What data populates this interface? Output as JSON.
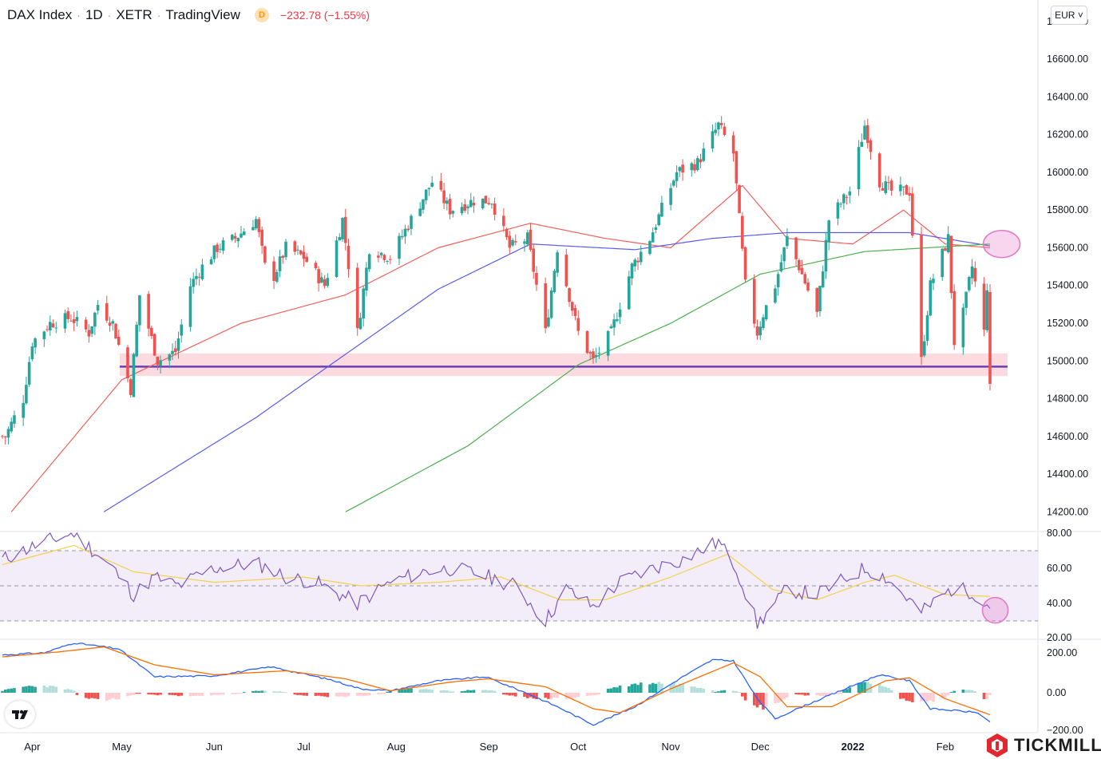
{
  "header": {
    "symbol": "DAX Index",
    "interval": "1D",
    "exchange": "XETR",
    "source": "TradingView",
    "badge": "D",
    "change": "−232.78 (−1.55%)"
  },
  "currency": "EUR",
  "brand": "TICKMILL",
  "colors": {
    "up": "#26a69a",
    "down": "#ef5350",
    "ma50": "#f4605a",
    "ma100": "#5b5bf0",
    "ma200": "#4caf50",
    "support_line": "#6a3fb5",
    "support_zone": "#f8bcc6",
    "rsi": "#7e57c2",
    "rsi_ma": "#f2d14b",
    "macd": "#2962ff",
    "signal": "#ff6d00",
    "hist_up_strong": "#26a69a",
    "hist_up_weak": "#b2dfdb",
    "hist_down_strong": "#ef5350",
    "hist_down_weak": "#ffcdd2",
    "highlight": "#e576c6"
  },
  "chart_data": [
    {
      "type": "candlestick",
      "panel": "price",
      "ylim": [
        14100,
        16850
      ],
      "y_ticks": [
        "16800.00",
        "16600.00",
        "16400.00",
        "16200.00",
        "16000.00",
        "15800.00",
        "15600.00",
        "15400.00",
        "15200.00",
        "15000.00",
        "14800.00",
        "14600.00",
        "14400.00",
        "14200.00"
      ],
      "x_ticks": [
        "Apr",
        "May",
        "Jun",
        "Jul",
        "Aug",
        "Sep",
        "Oct",
        "Nov",
        "Dec",
        "2022",
        "Feb"
      ],
      "x_range": [
        "2021-03-22",
        "2022-02-16"
      ],
      "anchors": [
        {
          "date": "2021-03-23",
          "close": 14600
        },
        {
          "date": "2021-03-29",
          "close": 14800
        },
        {
          "date": "2021-04-01",
          "close": 15100
        },
        {
          "date": "2021-04-07",
          "close": 15200
        },
        {
          "date": "2021-04-14",
          "close": 15230
        },
        {
          "date": "2021-04-20",
          "close": 15150
        },
        {
          "date": "2021-04-23",
          "close": 15300
        },
        {
          "date": "2021-04-28",
          "close": 15200
        },
        {
          "date": "2021-05-04",
          "close": 14850
        },
        {
          "date": "2021-05-07",
          "close": 15350
        },
        {
          "date": "2021-05-13",
          "close": 15000
        },
        {
          "date": "2021-05-19",
          "close": 15050
        },
        {
          "date": "2021-05-24",
          "close": 15400
        },
        {
          "date": "2021-05-28",
          "close": 15500
        },
        {
          "date": "2021-06-02",
          "close": 15600
        },
        {
          "date": "2021-06-08",
          "close": 15650
        },
        {
          "date": "2021-06-15",
          "close": 15750
        },
        {
          "date": "2021-06-18",
          "close": 15500
        },
        {
          "date": "2021-06-21",
          "close": 15450
        },
        {
          "date": "2021-06-25",
          "close": 15600
        },
        {
          "date": "2021-07-01",
          "close": 15550
        },
        {
          "date": "2021-07-08",
          "close": 15400
        },
        {
          "date": "2021-07-14",
          "close": 15750
        },
        {
          "date": "2021-07-19",
          "close": 15150
        },
        {
          "date": "2021-07-23",
          "close": 15600
        },
        {
          "date": "2021-07-30",
          "close": 15550
        },
        {
          "date": "2021-08-06",
          "close": 15750
        },
        {
          "date": "2021-08-13",
          "close": 15950
        },
        {
          "date": "2021-08-19",
          "close": 15800
        },
        {
          "date": "2021-08-27",
          "close": 15850
        },
        {
          "date": "2021-09-02",
          "close": 15850
        },
        {
          "date": "2021-09-08",
          "close": 15600
        },
        {
          "date": "2021-09-14",
          "close": 15650
        },
        {
          "date": "2021-09-20",
          "close": 15150
        },
        {
          "date": "2021-09-24",
          "close": 15600
        },
        {
          "date": "2021-10-01",
          "close": 15150
        },
        {
          "date": "2021-10-06",
          "close": 15000
        },
        {
          "date": "2021-10-12",
          "close": 15150
        },
        {
          "date": "2021-10-19",
          "close": 15500
        },
        {
          "date": "2021-10-25",
          "close": 15650
        },
        {
          "date": "2021-11-03",
          "close": 16000
        },
        {
          "date": "2021-11-10",
          "close": 16050
        },
        {
          "date": "2021-11-17",
          "close": 16250
        },
        {
          "date": "2021-11-22",
          "close": 16100
        },
        {
          "date": "2021-11-26",
          "close": 15400
        },
        {
          "date": "2021-11-30",
          "close": 15150
        },
        {
          "date": "2021-12-02",
          "close": 15250
        },
        {
          "date": "2021-12-06",
          "close": 15400
        },
        {
          "date": "2021-12-10",
          "close": 15650
        },
        {
          "date": "2021-12-14",
          "close": 15500
        },
        {
          "date": "2021-12-20",
          "close": 15250
        },
        {
          "date": "2021-12-24",
          "close": 15750
        },
        {
          "date": "2021-12-31",
          "close": 15900
        },
        {
          "date": "2022-01-05",
          "close": 16250
        },
        {
          "date": "2022-01-10",
          "close": 15950
        },
        {
          "date": "2022-01-14",
          "close": 15900
        },
        {
          "date": "2022-01-20",
          "close": 15900
        },
        {
          "date": "2022-01-24",
          "close": 15000
        },
        {
          "date": "2022-01-27",
          "close": 15400
        },
        {
          "date": "2022-02-02",
          "close": 15650
        },
        {
          "date": "2022-02-04",
          "close": 15100
        },
        {
          "date": "2022-02-07",
          "close": 15250
        },
        {
          "date": "2022-02-10",
          "close": 15500
        },
        {
          "date": "2022-02-14",
          "close": 15150
        },
        {
          "date": "2022-02-15",
          "close": 15400
        },
        {
          "date": "2022-02-16",
          "close": 14850
        }
      ],
      "moving_averages": [
        {
          "name": "MA50",
          "color": "#f4605a",
          "points": [
            [
              "2021-03-25",
              14200
            ],
            [
              "2021-05-01",
              14900
            ],
            [
              "2021-06-10",
              15200
            ],
            [
              "2021-07-15",
              15350
            ],
            [
              "2021-08-15",
              15600
            ],
            [
              "2021-09-15",
              15730
            ],
            [
              "2021-10-10",
              15650
            ],
            [
              "2021-11-01",
              15600
            ],
            [
              "2021-11-25",
              15930
            ],
            [
              "2021-12-10",
              15650
            ],
            [
              "2022-01-01",
              15620
            ],
            [
              "2022-01-18",
              15800
            ],
            [
              "2022-02-01",
              15620
            ],
            [
              "2022-02-16",
              15600
            ]
          ]
        },
        {
          "name": "MA100",
          "color": "#5b5bf0",
          "points": [
            [
              "2021-04-25",
              14200
            ],
            [
              "2021-06-15",
              14700
            ],
            [
              "2021-07-10",
              14980
            ],
            [
              "2021-08-15",
              15380
            ],
            [
              "2021-09-15",
              15620
            ],
            [
              "2021-10-20",
              15590
            ],
            [
              "2021-11-15",
              15650
            ],
            [
              "2021-12-10",
              15680
            ],
            [
              "2022-01-20",
              15680
            ],
            [
              "2022-02-16",
              15610
            ]
          ]
        },
        {
          "name": "MA200",
          "color": "#4caf50",
          "points": [
            [
              "2021-07-15",
              14200
            ],
            [
              "2021-08-25",
              14550
            ],
            [
              "2021-10-01",
              14980
            ],
            [
              "2021-11-01",
              15200
            ],
            [
              "2021-12-01",
              15460
            ],
            [
              "2022-01-05",
              15580
            ],
            [
              "2022-02-16",
              15620
            ]
          ]
        }
      ],
      "support": {
        "level": 14970,
        "zone": [
          14920,
          15040
        ],
        "from": "2021-05-03"
      },
      "highlight": {
        "date": "2022-02-14",
        "value": 15620
      }
    },
    {
      "type": "line",
      "panel": "RSI",
      "ylim": [
        20,
        80
      ],
      "y_ticks": [
        "80.00",
        "60.00",
        "40.00",
        "20.00"
      ],
      "band": [
        30,
        70
      ],
      "midline": 50,
      "series": [
        {
          "anchors": [
            [
              "2021-03-22",
              65
            ],
            [
              "2021-04-05",
              75
            ],
            [
              "2021-04-15",
              80
            ],
            [
              "2021-04-28",
              60
            ],
            [
              "2021-05-05",
              45
            ],
            [
              "2021-05-12",
              55
            ],
            [
              "2021-05-20",
              50
            ],
            [
              "2021-06-01",
              60
            ],
            [
              "2021-06-15",
              63
            ],
            [
              "2021-06-25",
              55
            ],
            [
              "2021-07-05",
              52
            ],
            [
              "2021-07-19",
              40
            ],
            [
              "2021-07-30",
              52
            ],
            [
              "2021-08-10",
              58
            ],
            [
              "2021-08-20",
              60
            ],
            [
              "2021-09-01",
              55
            ],
            [
              "2021-09-10",
              50
            ],
            [
              "2021-09-20",
              30
            ],
            [
              "2021-09-27",
              48
            ],
            [
              "2021-10-06",
              38
            ],
            [
              "2021-10-15",
              52
            ],
            [
              "2021-10-26",
              60
            ],
            [
              "2021-11-05",
              65
            ],
            [
              "2021-11-17",
              75
            ],
            [
              "2021-11-23",
              60
            ],
            [
              "2021-11-30",
              28
            ],
            [
              "2021-12-10",
              48
            ],
            [
              "2021-12-20",
              45
            ],
            [
              "2022-01-05",
              60
            ],
            [
              "2022-01-12",
              55
            ],
            [
              "2022-01-24",
              35
            ],
            [
              "2022-02-03",
              48
            ],
            [
              "2022-02-10",
              47
            ],
            [
              "2022-02-16",
              38
            ]
          ]
        },
        {
          "anchors": [
            [
              "2021-03-22",
              62
            ],
            [
              "2021-04-15",
              73
            ],
            [
              "2021-05-05",
              58
            ],
            [
              "2021-06-01",
              52
            ],
            [
              "2021-07-01",
              55
            ],
            [
              "2021-07-20",
              50
            ],
            [
              "2021-08-15",
              52
            ],
            [
              "2021-09-05",
              55
            ],
            [
              "2021-09-25",
              42
            ],
            [
              "2021-10-10",
              42
            ],
            [
              "2021-11-01",
              55
            ],
            [
              "2021-11-20",
              68
            ],
            [
              "2021-12-05",
              48
            ],
            [
              "2021-12-20",
              42
            ],
            [
              "2022-01-05",
              52
            ],
            [
              "2022-01-15",
              56
            ],
            [
              "2022-02-01",
              45
            ],
            [
              "2022-02-16",
              44
            ]
          ]
        }
      ],
      "highlight": {
        "date": "2022-02-14",
        "value": 37
      }
    },
    {
      "type": "line",
      "panel": "MACD",
      "ylim": [
        -200,
        260
      ],
      "y_ticks": [
        "200.00",
        "0.00",
        "−200.00"
      ],
      "series": [
        {
          "anchors": [
            [
              "2021-03-22",
              190
            ],
            [
              "2021-04-05",
              200
            ],
            [
              "2021-04-15",
              250
            ],
            [
              "2021-04-30",
              220
            ],
            [
              "2021-05-12",
              80
            ],
            [
              "2021-06-01",
              85
            ],
            [
              "2021-06-20",
              130
            ],
            [
              "2021-07-10",
              65
            ],
            [
              "2021-07-20",
              20
            ],
            [
              "2021-07-30",
              10
            ],
            [
              "2021-08-15",
              60
            ],
            [
              "2021-08-31",
              80
            ],
            [
              "2021-09-15",
              -10
            ],
            [
              "2021-09-24",
              -70
            ],
            [
              "2021-10-06",
              -160
            ],
            [
              "2021-10-20",
              -70
            ],
            [
              "2021-11-05",
              80
            ],
            [
              "2021-11-15",
              165
            ],
            [
              "2021-11-22",
              160
            ],
            [
              "2021-11-30",
              -30
            ],
            [
              "2021-12-06",
              -130
            ],
            [
              "2021-12-15",
              -70
            ],
            [
              "2022-01-05",
              60
            ],
            [
              "2022-01-10",
              90
            ],
            [
              "2022-01-20",
              60
            ],
            [
              "2022-01-27",
              -80
            ],
            [
              "2022-02-05",
              -90
            ],
            [
              "2022-02-12",
              -100
            ],
            [
              "2022-02-16",
              -150
            ]
          ]
        },
        {
          "anchors": [
            [
              "2021-03-22",
              180
            ],
            [
              "2021-04-10",
              205
            ],
            [
              "2021-04-25",
              230
            ],
            [
              "2021-05-12",
              140
            ],
            [
              "2021-06-01",
              90
            ],
            [
              "2021-06-25",
              110
            ],
            [
              "2021-07-15",
              70
            ],
            [
              "2021-07-30",
              10
            ],
            [
              "2021-08-20",
              55
            ],
            [
              "2021-09-01",
              70
            ],
            [
              "2021-09-20",
              30
            ],
            [
              "2021-10-06",
              -80
            ],
            [
              "2021-10-15",
              -100
            ],
            [
              "2021-11-01",
              20
            ],
            [
              "2021-11-22",
              150
            ],
            [
              "2021-12-01",
              80
            ],
            [
              "2021-12-10",
              -70
            ],
            [
              "2021-12-25",
              -70
            ],
            [
              "2022-01-12",
              60
            ],
            [
              "2022-01-20",
              75
            ],
            [
              "2022-02-01",
              -30
            ],
            [
              "2022-02-16",
              -110
            ]
          ]
        }
      ],
      "histogram": [
        {
          "from": "2021-03-22",
          "to": "2021-04-15",
          "value": 35
        },
        {
          "from": "2021-04-16",
          "to": "2021-05-05",
          "value": -35
        },
        {
          "from": "2021-05-06",
          "to": "2021-06-10",
          "value": -15
        },
        {
          "from": "2021-06-11",
          "to": "2021-06-25",
          "value": 10
        },
        {
          "from": "2021-06-26",
          "to": "2021-07-28",
          "value": -20
        },
        {
          "from": "2021-07-29",
          "to": "2021-08-20",
          "value": 20
        },
        {
          "from": "2021-08-21",
          "to": "2021-09-05",
          "value": 15
        },
        {
          "from": "2021-09-06",
          "to": "2021-10-08",
          "value": -30
        },
        {
          "from": "2021-10-09",
          "to": "2021-11-15",
          "value": 50
        },
        {
          "from": "2021-11-16",
          "to": "2021-11-24",
          "value": 15
        },
        {
          "from": "2021-11-25",
          "to": "2021-12-10",
          "value": -75
        },
        {
          "from": "2021-12-11",
          "to": "2021-12-28",
          "value": -15
        },
        {
          "from": "2021-12-29",
          "to": "2022-01-14",
          "value": 50
        },
        {
          "from": "2022-01-15",
          "to": "2022-02-02",
          "value": -50
        },
        {
          "from": "2022-02-03",
          "to": "2022-02-12",
          "value": 15
        },
        {
          "from": "2022-02-13",
          "to": "2022-02-16",
          "value": -35
        }
      ]
    }
  ]
}
